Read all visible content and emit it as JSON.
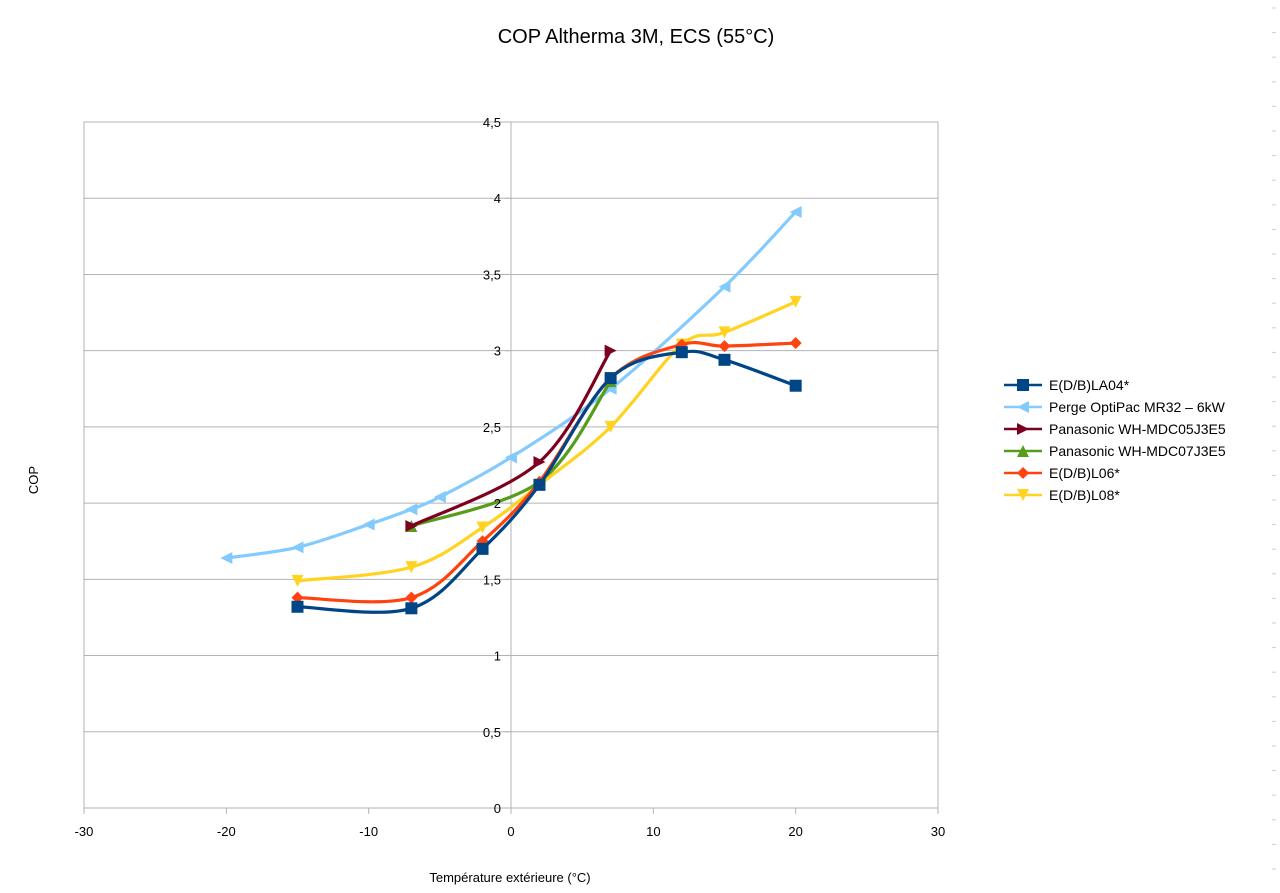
{
  "chart_data": {
    "type": "line",
    "title": "COP Altherma 3M, ECS (55°C)",
    "xlabel": "Température extérieure (°C)",
    "ylabel": "COP",
    "xlim": [
      -30,
      30
    ],
    "ylim": [
      0,
      4.5
    ],
    "x_ticks": [
      -30,
      -20,
      -10,
      0,
      10,
      20,
      30
    ],
    "x_tick_labels": [
      "-30",
      "-20",
      "-10",
      "0",
      "10",
      "20",
      "30"
    ],
    "y_ticks": [
      0,
      0.5,
      1,
      1.5,
      2,
      2.5,
      3,
      3.5,
      4,
      4.5
    ],
    "y_tick_labels": [
      "0",
      "0,5",
      "1",
      "1,5",
      "2",
      "2,5",
      "3",
      "3,5",
      "4",
      "4,5"
    ],
    "grid": "horizontal",
    "smoothed": true,
    "legend_position": "right",
    "series": [
      {
        "name": "E(D/B)LA04*",
        "color": "#004586",
        "marker": "square",
        "points": [
          [
            -15,
            1.32
          ],
          [
            -7,
            1.31
          ],
          [
            -2,
            1.7
          ],
          [
            2,
            2.12
          ],
          [
            7,
            2.82
          ],
          [
            12,
            2.99
          ],
          [
            15,
            2.94
          ],
          [
            20,
            2.77
          ]
        ]
      },
      {
        "name": "Perge OptiPac MR32 – 6kW",
        "color": "#83caff",
        "marker": "triangle-left",
        "points": [
          [
            -20,
            1.64
          ],
          [
            -15,
            1.71
          ],
          [
            -10,
            1.86
          ],
          [
            -7,
            1.96
          ],
          [
            -5,
            2.04
          ],
          [
            0,
            2.3
          ],
          [
            7,
            2.75
          ],
          [
            15,
            3.42
          ],
          [
            20,
            3.91
          ]
        ]
      },
      {
        "name": "Panasonic WH-MDC05J3E5",
        "color": "#7e0021",
        "marker": "triangle-right",
        "points": [
          [
            -7,
            1.85
          ],
          [
            2,
            2.27
          ],
          [
            7,
            3.0
          ]
        ]
      },
      {
        "name": "Panasonic WH-MDC07J3E5",
        "color": "#579d1c",
        "marker": "triangle-up",
        "points": [
          [
            -7,
            1.85
          ],
          [
            2,
            2.14
          ],
          [
            7,
            2.8
          ]
        ]
      },
      {
        "name": "E(D/B)L06*",
        "color": "#ff420e",
        "marker": "diamond",
        "points": [
          [
            -15,
            1.38
          ],
          [
            -7,
            1.38
          ],
          [
            -2,
            1.75
          ],
          [
            2,
            2.14
          ],
          [
            7,
            2.82
          ],
          [
            12,
            3.04
          ],
          [
            15,
            3.03
          ],
          [
            20,
            3.05
          ]
        ]
      },
      {
        "name": "E(D/B)L08*",
        "color": "#ffd320",
        "marker": "triangle-down",
        "points": [
          [
            -15,
            1.49
          ],
          [
            -7,
            1.58
          ],
          [
            -2,
            1.84
          ],
          [
            2,
            2.12
          ],
          [
            7,
            2.5
          ],
          [
            12,
            3.04
          ],
          [
            15,
            3.12
          ],
          [
            20,
            3.32
          ]
        ]
      }
    ]
  }
}
